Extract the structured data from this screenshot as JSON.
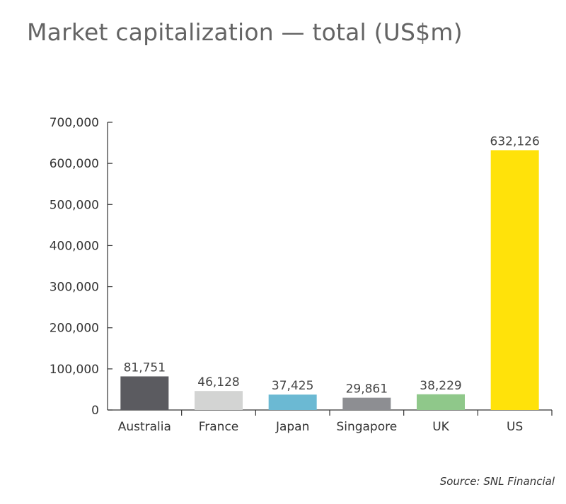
{
  "chart_data": {
    "type": "bar",
    "title": "Market capitalization — total (US$m)",
    "xlabel": "",
    "ylabel": "",
    "categories": [
      "Australia",
      "France",
      "Japan",
      "Singapore",
      "UK",
      "US"
    ],
    "values": [
      81751,
      46128,
      37425,
      29861,
      38229,
      632126
    ],
    "data_labels": [
      "81,751",
      "46,128",
      "37,425",
      "29,861",
      "38,229",
      "632,126"
    ],
    "colors": [
      "#5b5b60",
      "#d3d4d3",
      "#6bb9d3",
      "#8d8e92",
      "#8fc88a",
      "#ffe20a"
    ],
    "ylim": [
      0,
      700000
    ],
    "y_ticks": [
      0,
      100000,
      200000,
      300000,
      400000,
      500000,
      600000,
      700000
    ],
    "y_tick_labels": [
      "0",
      "100,000",
      "200,000",
      "300,000",
      "400,000",
      "500,000",
      "600,000",
      "700,000"
    ],
    "grid": false,
    "legend": "none"
  },
  "source": "Source: SNL Financial"
}
